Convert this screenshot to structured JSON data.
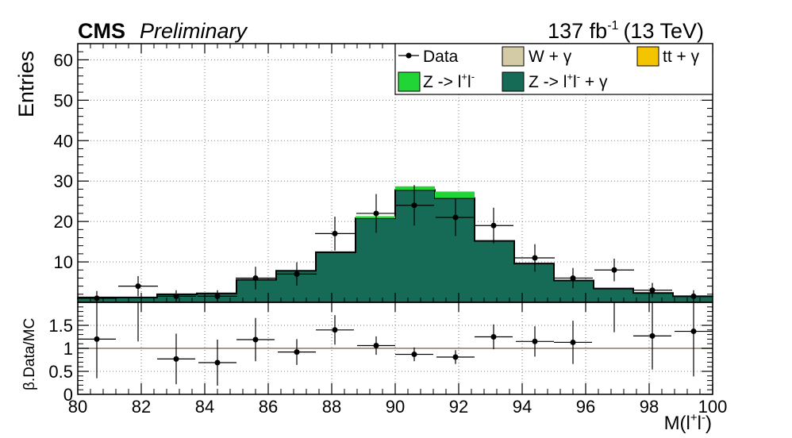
{
  "header": {
    "experiment": "CMS",
    "status": "Preliminary",
    "lumi": "137 fb",
    "lumi_exp": "-1",
    "energy": "(13 TeV)"
  },
  "colors": {
    "z_ll_gamma": "#156B55",
    "z_ll": "#22D536",
    "w_gamma": "#D2CBA6",
    "tt_gamma": "#F5C400",
    "data": "#000000",
    "grid": "#808080",
    "ratio_ref_line": "#8A7A66"
  },
  "chart_data": [
    {
      "type": "bar",
      "panel": "main",
      "ylabel": "Entries",
      "xlim": [
        80,
        100
      ],
      "ylim": [
        0,
        64
      ],
      "yticks": [
        10,
        20,
        30,
        40,
        50,
        60
      ],
      "grid": true,
      "legend_position": "top-right",
      "legend": [
        {
          "label": "Data",
          "kind": "marker"
        },
        {
          "label": "W + γ",
          "kind": "box",
          "color_key": "w_gamma"
        },
        {
          "label": "tt + γ",
          "kind": "box",
          "color_key": "tt_gamma"
        },
        {
          "label": "Z ->  l",
          "sup": "+",
          "label2": "l",
          "sup2": "-",
          "kind": "box",
          "color_key": "z_ll"
        },
        {
          "label": "Z -> l",
          "sup": "+",
          "label2": "l",
          "sup2": "-",
          "label3": " + γ",
          "kind": "box",
          "color_key": "z_ll_gamma"
        }
      ],
      "bin_edges": [
        80,
        81.25,
        82.5,
        83.75,
        85,
        86.25,
        87.5,
        88.75,
        90,
        91.25,
        92.5,
        93.75,
        95,
        96.25,
        97.5,
        98.75,
        100
      ],
      "series": [
        {
          "name": "Z -> l+l- + γ",
          "color_key": "z_ll_gamma",
          "values": [
            1.2,
            1.2,
            2.0,
            2.2,
            5.6,
            7.8,
            12.4,
            20.8,
            27.8,
            25.8,
            15.2,
            9.6,
            5.4,
            3.4,
            2.3,
            1.5
          ]
        },
        {
          "name": "Z -> l+l-",
          "color_key": "z_ll",
          "values": [
            0,
            0,
            0,
            0,
            0,
            0,
            0,
            0.5,
            0.9,
            1.6,
            0,
            0,
            0,
            0,
            0,
            0
          ]
        }
      ],
      "data_points": {
        "name": "Data",
        "x": [
          80.6,
          81.9,
          83.1,
          84.4,
          85.6,
          86.9,
          88.1,
          89.4,
          90.6,
          91.9,
          93.1,
          94.4,
          95.6,
          96.9,
          98.1,
          99.4
        ],
        "y": [
          1,
          4,
          1.5,
          1.5,
          6,
          7,
          17,
          22,
          24,
          21,
          19,
          11,
          6,
          8,
          3,
          1.5
        ],
        "yerr": [
          1.8,
          2.5,
          1.5,
          1.5,
          2.8,
          2.9,
          4.2,
          4.8,
          5,
          4.6,
          4.4,
          3.4,
          2.5,
          2.8,
          1.8,
          1.5
        ]
      }
    },
    {
      "type": "scatter",
      "panel": "ratio",
      "xlabel": "M(l",
      "xlabel_sup1": "+",
      "xlabel_mid": "l",
      "xlabel_sup2": "-",
      "xlabel_end": ")",
      "ylabel": "β.Data/MC",
      "xlim": [
        80,
        100
      ],
      "ylim": [
        0,
        2
      ],
      "xticks": [
        80,
        82,
        84,
        86,
        88,
        90,
        92,
        94,
        96,
        98,
        100
      ],
      "yticks": [
        0,
        0.5,
        1,
        1.5
      ],
      "ytick_labels": [
        "0",
        "0.5",
        "1",
        "1.5"
      ],
      "reference_line": 1,
      "grid": true,
      "points": {
        "x": [
          80.6,
          83.1,
          84.4,
          85.6,
          86.9,
          88.1,
          89.4,
          90.6,
          91.9,
          93.1,
          94.4,
          95.6,
          98.1,
          99.4
        ],
        "y": [
          1.2,
          0.77,
          0.69,
          1.19,
          0.92,
          1.4,
          1.06,
          0.87,
          0.81,
          1.25,
          1.15,
          1.13,
          1.27,
          1.37
        ],
        "yerr": [
          0.85,
          0.55,
          0.5,
          0.47,
          0.28,
          0.32,
          0.2,
          0.15,
          0.15,
          0.27,
          0.33,
          0.47,
          0.73,
          0.98
        ],
        "xerr": [
          0.6,
          0.6,
          0.6,
          0.6,
          0.6,
          0.6,
          0.6,
          0.6,
          0.6,
          0.6,
          0.6,
          0.6,
          0.6,
          0.6
        ]
      },
      "extra_error_bars": [
        {
          "x": 81.9,
          "ylow": 1.15,
          "yhigh": 2.0
        },
        {
          "x": 96.9,
          "ylow": 1.35,
          "yhigh": 2.0
        }
      ]
    }
  ]
}
